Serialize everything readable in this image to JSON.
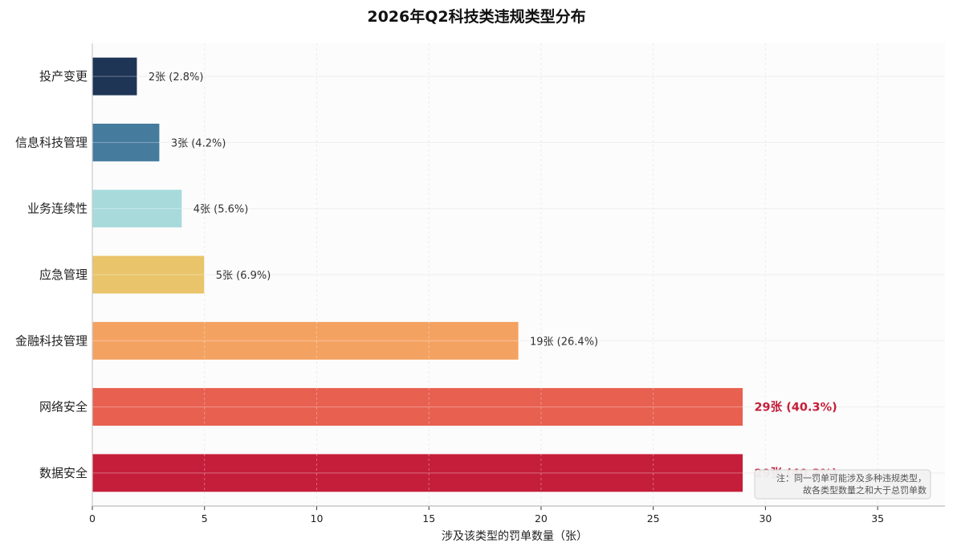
{
  "chart_data": {
    "type": "bar",
    "orientation": "horizontal",
    "title": "2026年Q2科技类违规类型分布",
    "xlabel": "涉及该类型的罚单数量（张）",
    "ylabel": "",
    "xlim": [
      0,
      38
    ],
    "xticks": [
      0,
      5,
      10,
      15,
      20,
      25,
      30,
      35
    ],
    "grid": true,
    "categories": [
      "投产变更",
      "信息科技管理",
      "业务连续性",
      "应急管理",
      "金融科技管理",
      "网络安全",
      "数据安全"
    ],
    "values": [
      2,
      3,
      4,
      5,
      19,
      29,
      29
    ],
    "value_labels": [
      "2张 (2.8%)",
      "3张 (4.2%)",
      "4张 (5.6%)",
      "5张 (6.9%)",
      "19张 (26.4%)",
      "29张 (40.3%)",
      "29张 (40.3%)"
    ],
    "highlighted": [
      false,
      false,
      false,
      false,
      false,
      true,
      true
    ],
    "colors": [
      "#1f3556",
      "#457b9d",
      "#a8dadc",
      "#e9c46a",
      "#f4a261",
      "#e76050",
      "#c41e3a"
    ],
    "highlight_color": "#c41e3a",
    "note": [
      "注：同一罚单可能涉及多种违规类型，",
      "故各类型数量之和大于总罚单数"
    ]
  }
}
